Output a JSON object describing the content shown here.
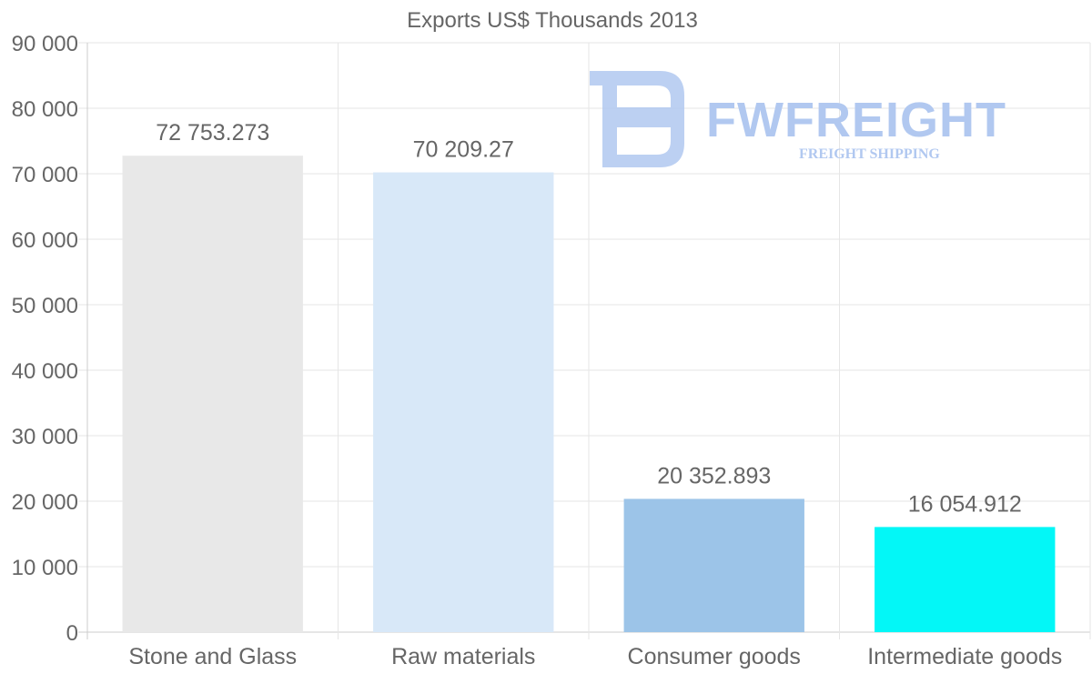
{
  "chart_data": {
    "type": "bar",
    "title": "Exports US$ Thousands 2013",
    "categories": [
      "Stone and Glass",
      "Raw materials",
      "Consumer goods",
      "Intermediate goods"
    ],
    "values": [
      72753.273,
      70209.27,
      20352.893,
      16054.912
    ],
    "value_labels": [
      "72 753.273",
      "70 209.27",
      "20 352.893",
      "16 054.912"
    ],
    "colors": [
      "#e8e8e8",
      "#d8e8f8",
      "#9cc4e8",
      "#03f7f7"
    ],
    "ylim": [
      0,
      90000
    ],
    "yticks": [
      0,
      10000,
      20000,
      30000,
      40000,
      50000,
      60000,
      70000,
      80000,
      90000
    ],
    "ytick_labels": [
      "0",
      "10 000",
      "20 000",
      "30 000",
      "40 000",
      "50 000",
      "60 000",
      "70 000",
      "80 000",
      "90 000"
    ],
    "xlabel": "",
    "ylabel": "",
    "grid": true
  },
  "watermark": {
    "brand": "FWFREIGHT",
    "tagline": "FREIGHT SHIPPING",
    "color": "#b1c8f0"
  }
}
